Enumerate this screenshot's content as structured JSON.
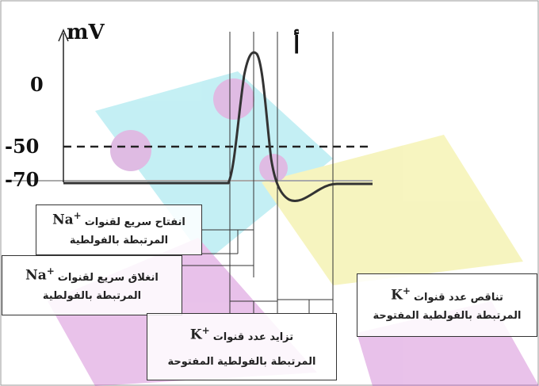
{
  "axis": {
    "label": "mV",
    "ticks": [
      "0",
      "-50",
      "-70"
    ]
  },
  "marker": "أ",
  "labels": [
    {
      "text": "انفتاح سريع لقنوات",
      "ion": "Na",
      "charge": "+",
      "line2": "المرتبطة بالفولطية"
    },
    {
      "text": "انغلاق سريع لقنوات",
      "ion": "Na",
      "charge": "+",
      "line2": "المرتبطة بالفولطية"
    },
    {
      "text": "تزايد عدد قنوات",
      "ion": "K",
      "charge": "+",
      "line2": "المرتبطة بالفولطية المفتوحة"
    },
    {
      "text": "تناقص عدد قنوات",
      "ion": "K",
      "charge": "+",
      "line2": "المرتبطة بالفولطية المفتوحة"
    }
  ]
}
